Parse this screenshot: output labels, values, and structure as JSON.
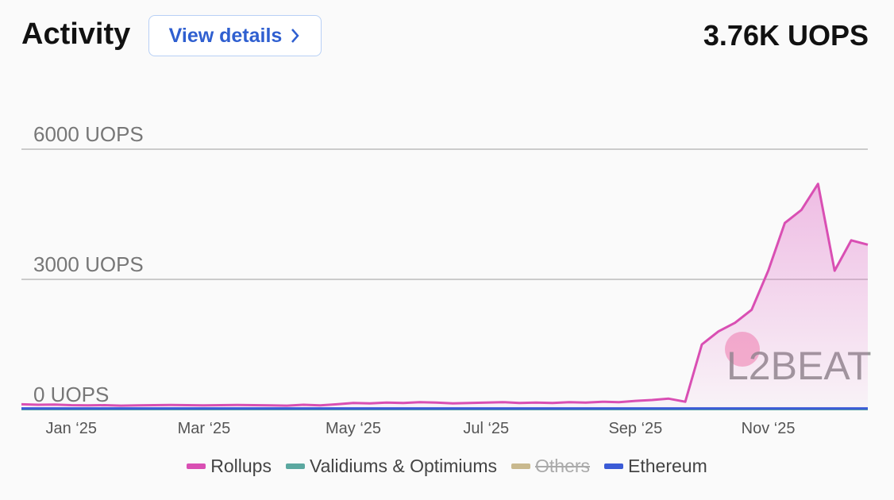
{
  "header": {
    "title": "Activity",
    "button": "View details",
    "summary": "3.76K UOPS"
  },
  "chart_data": {
    "type": "line",
    "watermark": "L2BEAT",
    "categories": [
      null,
      null,
      null,
      "Jan ‘25",
      null,
      null,
      null,
      null,
      null,
      null,
      null,
      "Mar ‘25",
      null,
      null,
      null,
      null,
      null,
      null,
      null,
      null,
      "May ‘25",
      null,
      null,
      null,
      null,
      null,
      null,
      null,
      "Jul ‘25",
      null,
      null,
      null,
      null,
      null,
      null,
      null,
      null,
      "Sep ‘25",
      null,
      null,
      null,
      null,
      null,
      null,
      null,
      "Nov ‘25",
      null,
      null,
      null,
      null,
      null,
      null
    ],
    "ylim": [
      0,
      6000
    ],
    "yticks": [
      {
        "value": 0,
        "label": "0 UOPS"
      },
      {
        "value": 3000,
        "label": "3000 UOPS"
      },
      {
        "value": 6000,
        "label": "6000 UOPS"
      }
    ],
    "grid": true,
    "series": [
      {
        "name": "Rollups",
        "color": "#d94fb3",
        "area": true,
        "values": [
          120,
          110,
          115,
          100,
          95,
          100,
          90,
          95,
          100,
          105,
          100,
          95,
          100,
          105,
          100,
          95,
          90,
          110,
          95,
          120,
          150,
          140,
          160,
          150,
          170,
          160,
          140,
          150,
          160,
          170,
          150,
          160,
          150,
          170,
          160,
          180,
          170,
          200,
          220,
          250,
          180,
          1500,
          1800,
          2000,
          2300,
          3200,
          4300,
          4600,
          5200,
          3200,
          3900,
          3800
        ]
      },
      {
        "name": "Validiums & Optimiums",
        "color": "#5ba8a0",
        "values": [
          10,
          10,
          10,
          10,
          10,
          10,
          10,
          10,
          10,
          10,
          10,
          10,
          10,
          10,
          10,
          10,
          10,
          10,
          10,
          10,
          10,
          10,
          10,
          10,
          10,
          10,
          10,
          10,
          10,
          10,
          10,
          10,
          10,
          10,
          10,
          10,
          10,
          10,
          10,
          10,
          10,
          10,
          10,
          10,
          10,
          10,
          10,
          10,
          10,
          10,
          10,
          10
        ]
      },
      {
        "name": "Others",
        "color": "#c9b98e",
        "hidden": true
      },
      {
        "name": "Ethereum",
        "color": "#3b5bd6",
        "values": [
          25,
          25,
          25,
          25,
          25,
          25,
          25,
          25,
          25,
          25,
          25,
          25,
          25,
          25,
          25,
          25,
          25,
          25,
          25,
          25,
          25,
          25,
          25,
          25,
          25,
          25,
          25,
          25,
          25,
          25,
          25,
          25,
          25,
          25,
          25,
          25,
          25,
          25,
          25,
          25,
          25,
          25,
          25,
          25,
          25,
          25,
          25,
          25,
          25,
          25,
          25,
          25
        ]
      }
    ]
  }
}
